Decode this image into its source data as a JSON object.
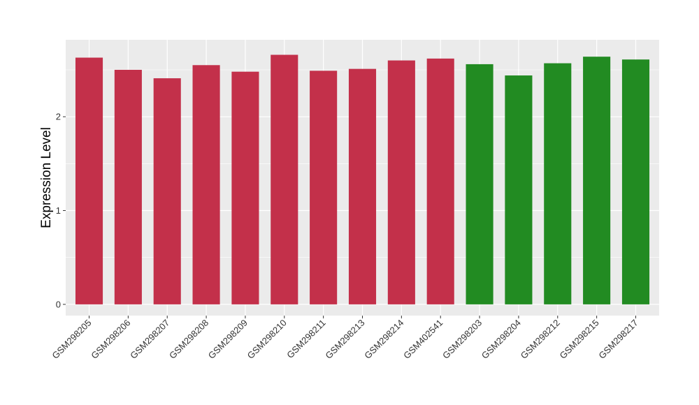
{
  "chart_data": {
    "type": "bar",
    "title": "",
    "xlabel": "",
    "ylabel": "Expression Level",
    "ylim": [
      -0.12,
      2.82
    ],
    "yticks": [
      0,
      1,
      2
    ],
    "grid": true,
    "legend": "none",
    "categories": [
      "GSM298205",
      "GSM298206",
      "GSM298207",
      "GSM298208",
      "GSM298209",
      "GSM298210",
      "GSM298211",
      "GSM298213",
      "GSM298214",
      "GSM402541",
      "GSM298203",
      "GSM298204",
      "GSM298212",
      "GSM298215",
      "GSM298217"
    ],
    "values": [
      2.63,
      2.5,
      2.41,
      2.55,
      2.48,
      2.66,
      2.49,
      2.51,
      2.6,
      2.62,
      2.56,
      2.44,
      2.57,
      2.64,
      2.61
    ],
    "groups": [
      0,
      0,
      0,
      0,
      0,
      0,
      0,
      0,
      0,
      0,
      1,
      1,
      1,
      1,
      1
    ],
    "group_colors": [
      "#c3304a",
      "#228b22"
    ],
    "panel_background": "#ebebeb",
    "grid_color": "#ffffff"
  }
}
